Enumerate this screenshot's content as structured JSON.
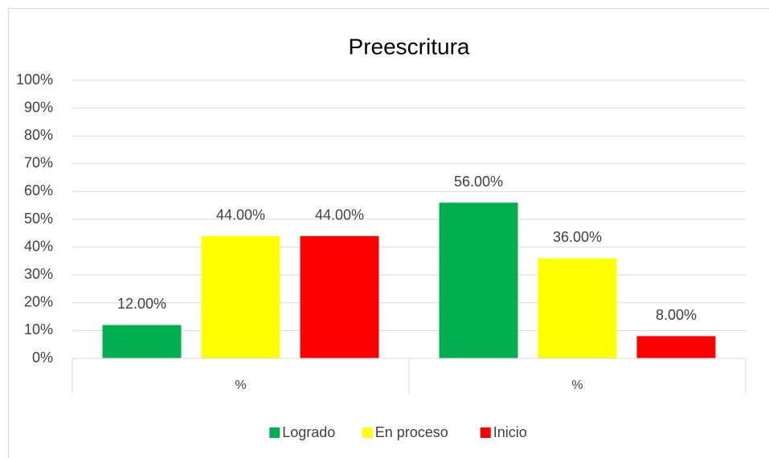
{
  "chart_data": {
    "type": "bar",
    "title": "Preescritura",
    "categories": [
      "%",
      "%"
    ],
    "series": [
      {
        "name": "Logrado",
        "color": "#00b050",
        "values": [
          12,
          56
        ],
        "value_labels": [
          "12.00%",
          "56.00%"
        ]
      },
      {
        "name": "En proceso",
        "color": "#ffff00",
        "values": [
          44,
          36
        ],
        "value_labels": [
          "44.00%",
          "36.00%"
        ]
      },
      {
        "name": "Inicio",
        "color": "#ff0000",
        "values": [
          44,
          8
        ],
        "value_labels": [
          "44.00%",
          "8.00%"
        ]
      }
    ],
    "ylim": [
      0,
      100
    ],
    "yticks": [
      {
        "value": 0,
        "label": "0%"
      },
      {
        "value": 10,
        "label": "10%"
      },
      {
        "value": 20,
        "label": "20%"
      },
      {
        "value": 30,
        "label": "30%"
      },
      {
        "value": 40,
        "label": "40%"
      },
      {
        "value": 50,
        "label": "50%"
      },
      {
        "value": 60,
        "label": "60%"
      },
      {
        "value": 70,
        "label": "70%"
      },
      {
        "value": 80,
        "label": "80%"
      },
      {
        "value": 90,
        "label": "90%"
      },
      {
        "value": 100,
        "label": "100%"
      }
    ],
    "grid": true,
    "legend": "bottom"
  }
}
